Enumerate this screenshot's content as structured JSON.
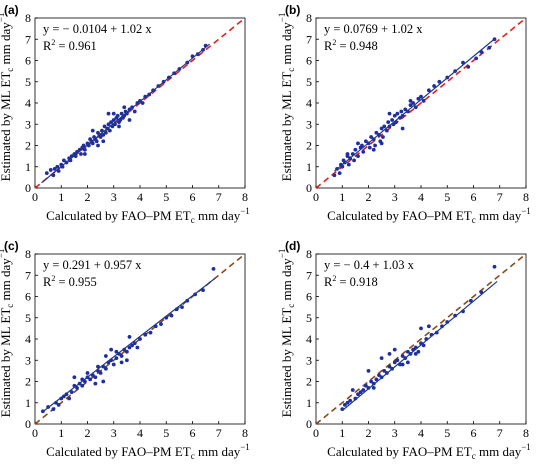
{
  "chart_data": [
    {
      "type": "scatter",
      "panel_label": "(a)",
      "equation": "y = − 0.0104 + 1.02 x",
      "r2_label": "R",
      "r2_value": " = 0.961",
      "xlabel": "Calculated by FAO–PM  ET",
      "ylabel": "Estimated by ML  ET",
      "unit_x": "mm  day",
      "unit_y": "mm  day",
      "exponent": "−1",
      "subscript": "c",
      "xlim": [
        0,
        8
      ],
      "ylim": [
        0,
        8
      ],
      "xticks": [
        "0",
        "1",
        "2",
        "3",
        "4",
        "5",
        "6",
        "7",
        "8"
      ],
      "yticks": [
        "0",
        "1",
        "2",
        "3",
        "4",
        "5",
        "6",
        "7",
        "8"
      ],
      "regression": {
        "intercept": -0.0104,
        "slope": 1.02,
        "x_range": [
          0.25,
          6.65
        ],
        "color": "#1f3a8a"
      },
      "identity_line": {
        "color": "#e02020",
        "style": "dashed"
      },
      "points_color": "#1f2ea0",
      "x": [
        0.45,
        0.6,
        0.7,
        0.75,
        0.85,
        0.9,
        1.0,
        1.05,
        1.1,
        1.2,
        1.3,
        1.35,
        1.4,
        1.5,
        1.55,
        1.6,
        1.7,
        1.75,
        1.8,
        1.85,
        1.9,
        2.0,
        2.05,
        2.1,
        2.15,
        2.2,
        2.25,
        2.3,
        2.35,
        2.4,
        2.45,
        2.5,
        2.55,
        2.6,
        2.65,
        2.7,
        2.75,
        2.8,
        2.85,
        2.9,
        2.95,
        3.0,
        3.05,
        3.1,
        3.15,
        3.2,
        3.25,
        3.3,
        3.35,
        3.4,
        3.45,
        3.5,
        3.6,
        3.7,
        3.8,
        3.9,
        4.0,
        4.1,
        4.2,
        4.35,
        4.5,
        4.7,
        4.9,
        5.1,
        5.3,
        5.5,
        5.8,
        6.0,
        6.2,
        6.4,
        6.5,
        2.2,
        2.6,
        3.0,
        3.4,
        1.9,
        2.8,
        3.2,
        2.4,
        3.6
      ],
      "y": [
        0.7,
        0.85,
        0.6,
        0.9,
        1.0,
        0.8,
        1.1,
        1.0,
        1.3,
        1.2,
        1.4,
        1.3,
        1.5,
        1.6,
        1.5,
        1.7,
        1.8,
        1.6,
        1.9,
        2.0,
        1.8,
        2.1,
        2.0,
        2.3,
        2.2,
        2.1,
        2.4,
        2.3,
        2.2,
        2.6,
        2.5,
        2.4,
        2.7,
        2.5,
        2.9,
        2.6,
        2.8,
        3.0,
        2.7,
        3.1,
        2.9,
        3.2,
        3.0,
        3.3,
        3.4,
        3.1,
        3.2,
        3.5,
        3.3,
        3.4,
        3.6,
        3.5,
        3.7,
        3.8,
        3.6,
        4.0,
        4.1,
        4.0,
        4.3,
        4.4,
        4.6,
        4.8,
        5.0,
        5.2,
        5.4,
        5.6,
        5.9,
        6.2,
        6.3,
        6.5,
        6.7,
        2.7,
        2.2,
        3.5,
        3.8,
        1.6,
        3.5,
        2.9,
        2.0,
        3.2
      ]
    },
    {
      "type": "scatter",
      "panel_label": "(b)",
      "equation": "y = 0.0769 + 1.02 x",
      "r2_label": "R",
      "r2_value": " = 0.948",
      "xlabel": "Calculated by FAO–PM  ET",
      "ylabel": "Estimated by ML  ET",
      "unit_x": "mm  day",
      "unit_y": "mm  day",
      "exponent": "−1",
      "subscript": "c",
      "xlim": [
        0,
        8
      ],
      "ylim": [
        0,
        8
      ],
      "xticks": [
        "0",
        "1",
        "2",
        "3",
        "4",
        "5",
        "6",
        "7",
        "8"
      ],
      "yticks": [
        "0",
        "1",
        "2",
        "3",
        "4",
        "5",
        "6",
        "7",
        "8"
      ],
      "regression": {
        "intercept": 0.0769,
        "slope": 1.02,
        "x_range": [
          0.7,
          6.85
        ],
        "color": "#1f3a8a"
      },
      "identity_line": {
        "color": "#e02020",
        "style": "dashed"
      },
      "points_color": "#1f2ea0",
      "x": [
        0.7,
        0.8,
        0.9,
        0.95,
        1.0,
        1.05,
        1.1,
        1.2,
        1.25,
        1.3,
        1.4,
        1.45,
        1.5,
        1.6,
        1.7,
        1.75,
        1.8,
        1.9,
        2.0,
        2.05,
        2.1,
        2.2,
        2.25,
        2.3,
        2.4,
        2.45,
        2.5,
        2.55,
        2.6,
        2.7,
        2.75,
        2.8,
        2.9,
        2.95,
        3.0,
        3.05,
        3.1,
        3.2,
        3.25,
        3.3,
        3.4,
        3.5,
        3.6,
        3.7,
        3.8,
        3.9,
        4.0,
        4.1,
        4.3,
        4.5,
        4.7,
        5.0,
        5.3,
        5.6,
        5.8,
        6.1,
        6.3,
        6.6,
        6.8,
        1.6,
        2.2,
        2.8,
        3.3,
        1.2,
        2.5,
        3.6
      ],
      "y": [
        0.6,
        0.9,
        0.7,
        1.1,
        1.0,
        1.3,
        1.2,
        1.5,
        1.1,
        1.4,
        1.6,
        1.3,
        1.8,
        1.5,
        1.9,
        2.0,
        1.7,
        2.2,
        2.1,
        1.9,
        2.4,
        2.3,
        2.0,
        2.6,
        2.5,
        2.2,
        2.8,
        2.4,
        2.9,
        2.7,
        3.1,
        2.9,
        3.2,
        3.0,
        3.4,
        3.1,
        3.5,
        3.3,
        3.6,
        3.4,
        3.7,
        3.6,
        3.9,
        4.0,
        3.8,
        4.2,
        4.3,
        4.1,
        4.6,
        4.8,
        5.0,
        5.2,
        5.5,
        5.9,
        5.7,
        6.1,
        6.4,
        6.6,
        7.0,
        2.1,
        1.8,
        3.5,
        2.8,
        1.6,
        2.1,
        4.1
      ]
    },
    {
      "type": "scatter",
      "panel_label": "(c)",
      "equation": "y = 0.291 + 0.957 x",
      "r2_label": "R",
      "r2_value": " = 0.955",
      "xlabel": "Calculated by FAO–PM  ET",
      "ylabel": "Estimated by ML  ET",
      "unit_x": "mm  day",
      "unit_y": "mm  day",
      "exponent": "−1",
      "subscript": "c",
      "xlim": [
        0,
        8
      ],
      "ylim": [
        0,
        8
      ],
      "xticks": [
        "0",
        "1",
        "2",
        "3",
        "4",
        "5",
        "6",
        "7",
        "8"
      ],
      "yticks": [
        "0",
        "1",
        "2",
        "3",
        "4",
        "5",
        "6",
        "7",
        "8"
      ],
      "regression": {
        "intercept": 0.291,
        "slope": 0.957,
        "x_range": [
          0.3,
          6.85
        ],
        "color": "#1f3a8a"
      },
      "identity_line": {
        "color": "#8a4a1a",
        "style": "dashed"
      },
      "points_color": "#1f2ea0",
      "x": [
        0.3,
        0.5,
        0.7,
        0.8,
        0.9,
        1.0,
        1.1,
        1.2,
        1.3,
        1.4,
        1.5,
        1.6,
        1.7,
        1.8,
        1.9,
        2.0,
        2.1,
        2.2,
        2.3,
        2.4,
        2.5,
        2.6,
        2.7,
        2.8,
        2.9,
        3.0,
        3.1,
        3.2,
        3.3,
        3.4,
        3.5,
        3.6,
        3.7,
        3.8,
        3.9,
        4.0,
        4.2,
        4.4,
        4.6,
        4.8,
        5.0,
        5.2,
        5.4,
        5.6,
        5.8,
        6.1,
        6.4,
        6.8,
        1.5,
        1.8,
        2.3,
        2.6,
        2.9,
        3.3,
        3.6,
        2.0,
        2.4,
        2.7,
        3.1,
        3.5
      ],
      "y": [
        0.6,
        0.8,
        0.7,
        1.0,
        0.9,
        1.2,
        1.3,
        1.4,
        1.2,
        1.5,
        1.8,
        1.7,
        1.9,
        2.1,
        2.0,
        2.2,
        2.1,
        2.3,
        2.2,
        2.5,
        2.4,
        2.7,
        2.6,
        2.9,
        3.0,
        2.8,
        3.1,
        3.3,
        3.2,
        3.5,
        3.4,
        3.6,
        3.7,
        3.8,
        3.6,
        4.0,
        4.2,
        4.3,
        4.6,
        4.7,
        5.0,
        5.1,
        5.4,
        5.5,
        5.8,
        6.1,
        6.3,
        7.3,
        2.2,
        1.8,
        1.9,
        2.0,
        3.5,
        2.9,
        4.1,
        2.4,
        2.7,
        3.2,
        3.4,
        3.0
      ]
    },
    {
      "type": "scatter",
      "panel_label": "(d)",
      "equation": "y = − 0.4 + 1.03 x",
      "r2_label": "R",
      "r2_value": " = 0.918",
      "xlabel": "Calculated by FAO–PM  ET",
      "ylabel": "Estimated by ML  ET",
      "unit_x": "mm  day",
      "unit_y": "mm  day",
      "exponent": "−1",
      "subscript": "c",
      "xlim": [
        0,
        8
      ],
      "ylim": [
        0,
        8
      ],
      "xticks": [
        "0",
        "1",
        "2",
        "3",
        "4",
        "5",
        "6",
        "7",
        "8"
      ],
      "yticks": [
        "0",
        "1",
        "2",
        "3",
        "4",
        "5",
        "6",
        "7",
        "8"
      ],
      "regression": {
        "intercept": -0.4,
        "slope": 1.03,
        "x_range": [
          1.0,
          6.9
        ],
        "color": "#1f3a8a"
      },
      "identity_line": {
        "color": "#8a4a1a",
        "style": "dashed"
      },
      "points_color": "#1f2ea0",
      "x": [
        1.0,
        1.1,
        1.2,
        1.3,
        1.5,
        1.6,
        1.7,
        1.8,
        1.9,
        2.0,
        2.1,
        2.2,
        2.3,
        2.4,
        2.5,
        2.6,
        2.7,
        2.8,
        2.9,
        3.0,
        3.1,
        3.2,
        3.3,
        3.4,
        3.5,
        3.6,
        3.7,
        3.8,
        3.9,
        4.0,
        4.1,
        4.2,
        4.4,
        4.6,
        4.8,
        5.0,
        5.3,
        5.6,
        5.9,
        6.3,
        6.8,
        2.0,
        2.5,
        3.0,
        3.5,
        4.0,
        2.2,
        2.8,
        3.3,
        3.8,
        1.4,
        4.3
      ],
      "y": [
        0.7,
        0.9,
        1.0,
        1.1,
        1.2,
        1.4,
        1.5,
        1.6,
        1.8,
        1.7,
        2.0,
        1.9,
        2.1,
        2.3,
        2.2,
        2.5,
        2.4,
        2.7,
        2.6,
        2.9,
        3.0,
        2.8,
        3.2,
        3.1,
        3.4,
        3.3,
        3.5,
        3.6,
        3.4,
        3.8,
        3.7,
        4.0,
        4.2,
        4.3,
        4.6,
        4.8,
        5.1,
        5.3,
        5.8,
        6.2,
        7.4,
        2.5,
        3.1,
        3.5,
        2.9,
        4.5,
        1.7,
        3.3,
        2.8,
        3.3,
        1.6,
        4.6
      ]
    }
  ]
}
